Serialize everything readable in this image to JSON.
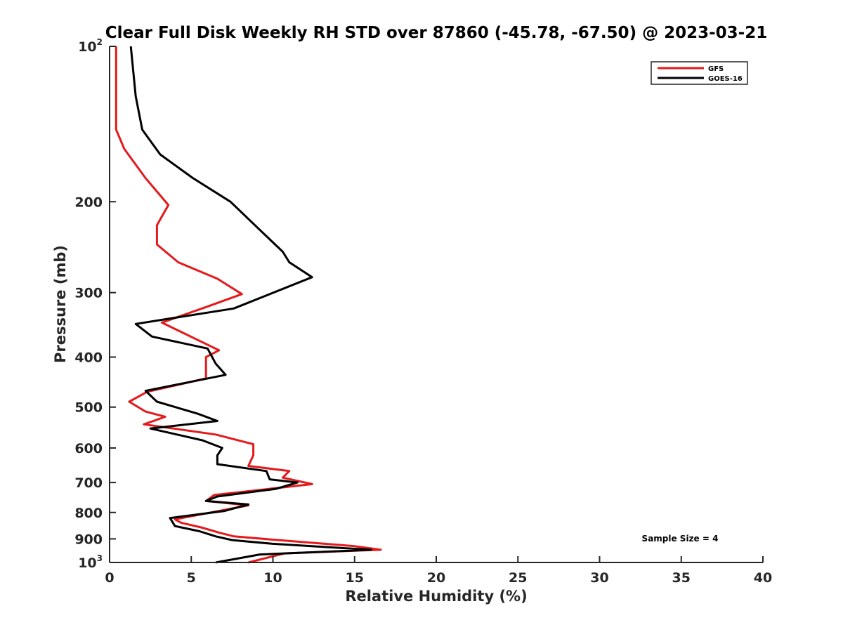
{
  "chart_data": {
    "type": "line",
    "title": "Clear Full Disk Weekly RH STD over 87860 (-45.78, -67.50) @ 2023-03-21",
    "xlabel": "Relative Humidity (%)",
    "ylabel": "Pressure (mb)",
    "xlim": [
      0,
      40
    ],
    "ylim": [
      100,
      1000
    ],
    "y_scale": "log",
    "y_reversed": true,
    "grid": false,
    "legend_position": "top-right",
    "x_ticks": [
      "0",
      "5",
      "10",
      "15",
      "20",
      "25",
      "30",
      "35",
      "40"
    ],
    "y_ticks": [
      {
        "value": 100,
        "label": "10",
        "sup": "2"
      },
      {
        "value": 200,
        "label": "200",
        "sup": ""
      },
      {
        "value": 300,
        "label": "300",
        "sup": ""
      },
      {
        "value": 400,
        "label": "400",
        "sup": ""
      },
      {
        "value": 500,
        "label": "500",
        "sup": ""
      },
      {
        "value": 600,
        "label": "600",
        "sup": ""
      },
      {
        "value": 700,
        "label": "700",
        "sup": ""
      },
      {
        "value": 800,
        "label": "800",
        "sup": ""
      },
      {
        "value": 900,
        "label": "900",
        "sup": ""
      },
      {
        "value": 1000,
        "label": "10",
        "sup": "3"
      }
    ],
    "annotation": "Sample Size = 4",
    "series": [
      {
        "name": "GFS",
        "color": "#e41a1c",
        "points": [
          [
            0.4,
            100
          ],
          [
            0.4,
            125
          ],
          [
            0.4,
            145
          ],
          [
            0.9,
            158
          ],
          [
            2.2,
            180
          ],
          [
            3.6,
            203
          ],
          [
            2.9,
            222
          ],
          [
            2.9,
            242
          ],
          [
            4.2,
            262
          ],
          [
            6.6,
            282
          ],
          [
            8.1,
            302
          ],
          [
            5.9,
            320
          ],
          [
            3.2,
            343
          ],
          [
            6.7,
            388
          ],
          [
            5.9,
            400
          ],
          [
            5.9,
            440
          ],
          [
            2.3,
            467
          ],
          [
            1.2,
            488
          ],
          [
            2.2,
            510
          ],
          [
            3.4,
            522
          ],
          [
            2.1,
            540
          ],
          [
            6.5,
            565
          ],
          [
            8.8,
            590
          ],
          [
            8.8,
            620
          ],
          [
            8.5,
            650
          ],
          [
            11.0,
            665
          ],
          [
            10.6,
            685
          ],
          [
            12.4,
            705
          ],
          [
            6.4,
            740
          ],
          [
            5.9,
            760
          ],
          [
            8.5,
            775
          ],
          [
            4.0,
            825
          ],
          [
            4.4,
            838
          ],
          [
            5.6,
            855
          ],
          [
            6.7,
            875
          ],
          [
            7.6,
            890
          ],
          [
            9.8,
            902
          ],
          [
            15.0,
            930
          ],
          [
            16.6,
            945
          ],
          [
            10.7,
            960
          ],
          [
            8.5,
            1000
          ]
        ]
      },
      {
        "name": "GOES-16",
        "color": "#000000",
        "points": [
          [
            1.3,
            100
          ],
          [
            1.6,
            125
          ],
          [
            2.0,
            145
          ],
          [
            3.1,
            162
          ],
          [
            5.1,
            180
          ],
          [
            7.4,
            200
          ],
          [
            9.4,
            230
          ],
          [
            10.6,
            250
          ],
          [
            11.0,
            262
          ],
          [
            12.4,
            280
          ],
          [
            7.6,
            322
          ],
          [
            1.6,
            345
          ],
          [
            2.6,
            365
          ],
          [
            6.0,
            385
          ],
          [
            6.5,
            412
          ],
          [
            7.1,
            433
          ],
          [
            2.2,
            465
          ],
          [
            2.9,
            488
          ],
          [
            5.4,
            515
          ],
          [
            6.6,
            532
          ],
          [
            2.5,
            550
          ],
          [
            5.7,
            580
          ],
          [
            6.9,
            600
          ],
          [
            6.6,
            620
          ],
          [
            6.6,
            645
          ],
          [
            9.6,
            665
          ],
          [
            9.8,
            690
          ],
          [
            11.5,
            700
          ],
          [
            10.2,
            720
          ],
          [
            6.6,
            745
          ],
          [
            5.9,
            760
          ],
          [
            8.5,
            772
          ],
          [
            7.0,
            795
          ],
          [
            3.7,
            820
          ],
          [
            3.9,
            840
          ],
          [
            4.0,
            850
          ],
          [
            5.5,
            870
          ],
          [
            6.5,
            890
          ],
          [
            7.5,
            905
          ],
          [
            10.0,
            920
          ],
          [
            16.0,
            945
          ],
          [
            9.2,
            965
          ],
          [
            6.5,
            1000
          ]
        ]
      }
    ]
  }
}
